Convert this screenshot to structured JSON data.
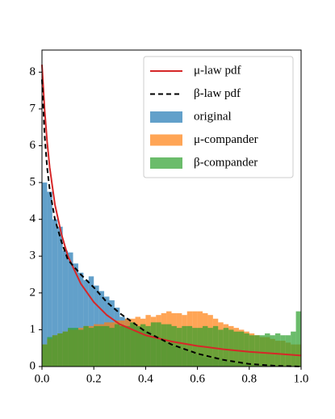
{
  "chart_data": {
    "type": "histogram",
    "xlim": [
      0,
      1
    ],
    "ylim": [
      0,
      8.6
    ],
    "xticks": [
      {
        "value": 0,
        "label": "0.0"
      },
      0.2,
      0.4,
      0.6,
      0.8,
      {
        "value": 1,
        "label": "1.0"
      }
    ],
    "yticks": [
      0,
      1,
      2,
      3,
      4,
      5,
      6,
      7,
      8
    ],
    "legend": "upper right",
    "bins": [
      0,
      0.02,
      0.04,
      0.06,
      0.08,
      0.1,
      0.12,
      0.14,
      0.16,
      0.18,
      0.2,
      0.22,
      0.24,
      0.26,
      0.28,
      0.3,
      0.32,
      0.34,
      0.36,
      0.38,
      0.4,
      0.42,
      0.44,
      0.46,
      0.48,
      0.5,
      0.52,
      0.54,
      0.56,
      0.58,
      0.6,
      0.62,
      0.64,
      0.66,
      0.68,
      0.7,
      0.72,
      0.74,
      0.76,
      0.78,
      0.8,
      0.82,
      0.84,
      0.86,
      0.88,
      0.9,
      0.92,
      0.94,
      0.96,
      0.98,
      1
    ],
    "series": [
      {
        "name": "original",
        "color": "#1f77b4",
        "values": [
          5.0,
          4.75,
          4.0,
          3.8,
          3.15,
          3.1,
          2.8,
          2.55,
          2.35,
          2.45,
          2.2,
          2.05,
          1.9,
          1.8,
          1.6,
          1.35,
          1.3,
          1.2,
          1.1,
          1.0,
          0.95,
          0.85,
          0.75,
          0.7,
          0.65,
          0.55,
          0.5,
          0.45,
          0.4,
          0.35,
          0.3,
          0.25,
          0.22,
          0.2,
          0.17,
          0.14,
          0.12,
          0.1,
          0.08,
          0.07,
          0.05,
          0.04,
          0.03,
          0.03,
          0.02,
          0.02,
          0.01,
          0.01,
          0.01,
          0
        ]
      },
      {
        "name": "μ-compander",
        "color": "#ff7f0e",
        "values": [
          0.6,
          0.75,
          0.85,
          0.9,
          0.95,
          1.0,
          1.0,
          1.05,
          1.1,
          1.1,
          1.15,
          1.15,
          1.2,
          1.2,
          1.25,
          1.25,
          1.3,
          1.3,
          1.35,
          1.3,
          1.4,
          1.35,
          1.4,
          1.45,
          1.5,
          1.45,
          1.45,
          1.4,
          1.5,
          1.5,
          1.5,
          1.45,
          1.4,
          1.3,
          1.2,
          1.15,
          1.1,
          1.05,
          1.0,
          0.95,
          0.9,
          0.85,
          0.8,
          0.8,
          0.75,
          0.7,
          0.7,
          0.65,
          0.6,
          0.6
        ]
      },
      {
        "name": "β-compander",
        "color": "#2ca02c",
        "values": [
          0.6,
          0.8,
          0.85,
          0.9,
          0.95,
          1.05,
          1.05,
          1.0,
          1.1,
          1.05,
          1.1,
          1.1,
          1.1,
          1.05,
          1.15,
          1.1,
          1.1,
          1.2,
          1.1,
          1.15,
          1.1,
          1.2,
          1.2,
          1.15,
          1.15,
          1.1,
          1.05,
          1.1,
          1.1,
          1.05,
          1.05,
          1.1,
          1.05,
          1.1,
          1.0,
          1.05,
          1.0,
          0.95,
          0.95,
          0.9,
          0.85,
          0.85,
          0.85,
          0.9,
          0.85,
          0.9,
          0.85,
          0.85,
          0.95,
          1.5
        ]
      }
    ],
    "line_x": [
      0,
      0.01,
      0.02,
      0.03,
      0.05,
      0.075,
      0.1,
      0.15,
      0.2,
      0.25,
      0.3,
      0.4,
      0.5,
      0.6,
      0.7,
      0.8,
      0.9,
      1
    ],
    "lines": [
      {
        "name": "μ-law pdf",
        "color": "#d62728",
        "dash": "none",
        "values": [
          8.2,
          7.0,
          6.1,
          5.4,
          4.4,
          3.6,
          3.0,
          2.25,
          1.75,
          1.4,
          1.15,
          0.85,
          0.68,
          0.56,
          0.47,
          0.4,
          0.35,
          0.3
        ]
      },
      {
        "name": "β-law pdf",
        "color": "#000000",
        "dash": "6 4",
        "values": [
          7.8,
          6.3,
          5.4,
          4.8,
          4.0,
          3.4,
          2.9,
          2.5,
          2.15,
          1.75,
          1.45,
          0.95,
          0.6,
          0.35,
          0.18,
          0.07,
          0.02,
          0
        ]
      }
    ]
  }
}
